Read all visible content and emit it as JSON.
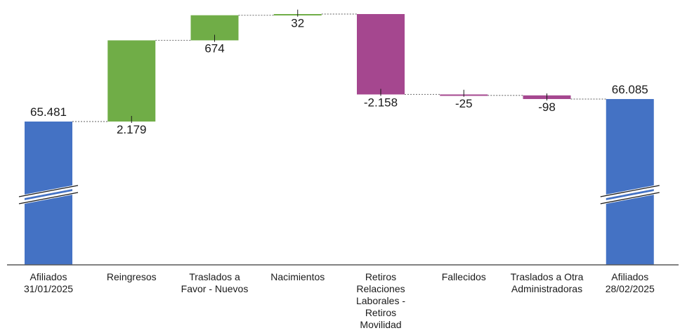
{
  "chart_data": {
    "type": "waterfall",
    "title": "",
    "xlabel": "",
    "ylabel": "",
    "axis_break": true,
    "categories": [
      {
        "label_lines": [
          "Afiliados",
          "31/01/2025"
        ],
        "kind": "total",
        "value": 65481,
        "display": "65.481"
      },
      {
        "label_lines": [
          "Reingresos"
        ],
        "kind": "increase",
        "value": 2179,
        "display": "2.179"
      },
      {
        "label_lines": [
          "Traslados a",
          "Favor - Nuevos"
        ],
        "kind": "increase",
        "value": 674,
        "display": "674"
      },
      {
        "label_lines": [
          "Nacimientos"
        ],
        "kind": "increase",
        "value": 32,
        "display": "32"
      },
      {
        "label_lines": [
          "Retiros",
          "Relaciones",
          "Laborales -",
          "Retiros",
          "Movilidad"
        ],
        "kind": "decrease",
        "value": -2158,
        "display": "-2.158"
      },
      {
        "label_lines": [
          "Fallecidos"
        ],
        "kind": "decrease",
        "value": -25,
        "display": "-25"
      },
      {
        "label_lines": [
          "Traslados a Otra",
          "Administradoras"
        ],
        "kind": "decrease",
        "value": -98,
        "display": "-98"
      },
      {
        "label_lines": [
          "Afiliados",
          "28/02/2025"
        ],
        "kind": "total",
        "value": 66085,
        "display": "66.085"
      }
    ],
    "colors": {
      "total": "#4472c4",
      "increase": "#70ad47",
      "decrease": "#a5478f",
      "connector": "#7f7f7f",
      "axis": "#595959",
      "break_line": "#1a1a1a"
    }
  }
}
